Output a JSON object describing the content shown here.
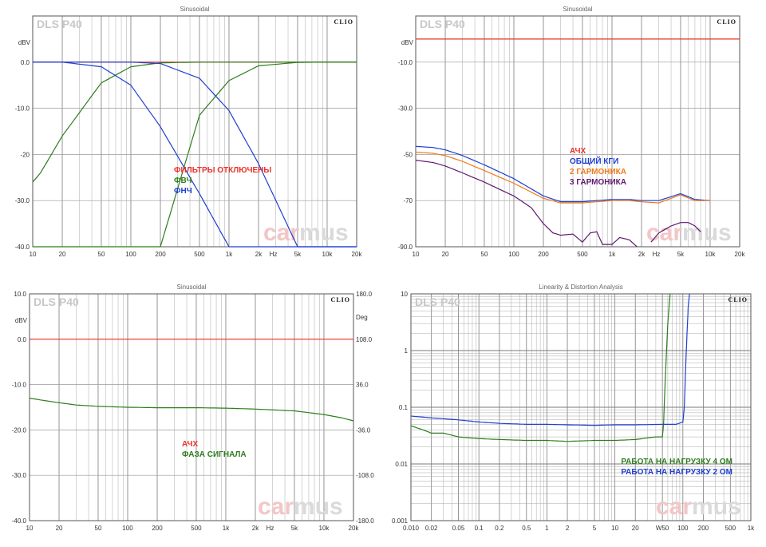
{
  "chart_data": [
    {
      "type": "line",
      "title": "Sinusoidal",
      "brand": "DLS P40",
      "logo": "CLIO",
      "x_scale": "log",
      "xlim": [
        10,
        20000
      ],
      "ylim": [
        -40,
        10
      ],
      "ylabel": "dBV",
      "x_ticks": [
        10,
        20,
        50,
        100,
        200,
        500,
        1000,
        2000,
        5000,
        10000,
        20000
      ],
      "x_tick_labels": [
        "10",
        "20",
        "50",
        "100",
        "200",
        "500",
        "1k",
        "2k",
        "5k",
        "10k",
        "20k"
      ],
      "x_unit": "Hz",
      "y_ticks": [
        0,
        -10,
        -20,
        -30,
        -40
      ],
      "y_tick_labels": [
        "0.0",
        "-10.0",
        "-20",
        "-30.0",
        "-40.0"
      ],
      "legend": [
        "ФИЛЬТРЫ ОТКЛЮЧЕНЫ",
        "ФВЧ",
        "ФНЧ"
      ],
      "watermark": [
        "car",
        "mus"
      ],
      "series": [
        {
          "name": "ФИЛЬТРЫ ОТКЛЮЧЕНЫ",
          "color": "#e8322a",
          "x": [
            10,
            20,
            50,
            100,
            200,
            500,
            1000,
            2000,
            5000,
            10000,
            20000
          ],
          "y": [
            0,
            0,
            0,
            0,
            0,
            0,
            0,
            0,
            0,
            0,
            0
          ]
        },
        {
          "name": "ФВЧ",
          "color": "#2e7d1e",
          "curve": "hp4",
          "x": [
            10,
            20,
            50,
            100,
            200,
            500,
            1000,
            2000,
            5000,
            10000,
            20000
          ],
          "y": [
            -40,
            -40,
            -40,
            -40,
            -40,
            -11.5,
            -4,
            -0.8,
            -0.05,
            0,
            0
          ]
        },
        {
          "name": "ФВЧ",
          "color": "#2e7d1e",
          "curve": "hp1",
          "x": [
            10,
            12,
            20,
            50,
            100,
            200,
            500,
            1000,
            2000,
            5000,
            10000,
            20000
          ],
          "y": [
            -26,
            -24,
            -16,
            -4.5,
            -1,
            -0.15,
            0,
            0,
            0,
            0,
            0,
            0
          ]
        },
        {
          "name": "ФНЧ",
          "color": "#1f3fd0",
          "curve": "lp1",
          "x": [
            10,
            20,
            50,
            100,
            200,
            500,
            1000,
            2000,
            5000,
            10000,
            20000
          ],
          "y": [
            0,
            0,
            -1,
            -5,
            -14,
            -28.5,
            -40,
            -40,
            -40,
            -40,
            -40
          ]
        },
        {
          "name": "ФНЧ",
          "color": "#1f3fd0",
          "curve": "lp2",
          "x": [
            10,
            20,
            50,
            100,
            200,
            500,
            1000,
            2000,
            5000,
            10000,
            20000
          ],
          "y": [
            0,
            0,
            0,
            0,
            -0.3,
            -3.5,
            -10.5,
            -22,
            -40,
            -40,
            -40
          ]
        }
      ]
    },
    {
      "type": "line",
      "title": "Sinusoidal",
      "brand": "DLS P40",
      "logo": "CLIO",
      "x_scale": "log",
      "xlim": [
        10,
        20000
      ],
      "ylim": [
        -90,
        10
      ],
      "ylabel": "dBV",
      "x_ticks": [
        10,
        20,
        50,
        100,
        200,
        500,
        1000,
        2000,
        5000,
        10000,
        20000
      ],
      "x_tick_labels": [
        "10",
        "20",
        "50",
        "100",
        "200",
        "500",
        "1k",
        "2k",
        "5k",
        "10k",
        "20k"
      ],
      "x_unit": "Hz",
      "y_ticks": [
        -10,
        -30,
        -50,
        -70,
        -90
      ],
      "y_tick_labels": [
        "-10.0",
        "-30.0",
        "-50",
        "-70",
        "-90.0"
      ],
      "legend": [
        "АЧХ",
        "ОБЩИЙ КГИ",
        "2 ГАРМОНИКА",
        "3 ГАРМОНИКА"
      ],
      "watermark": [
        "car",
        "mus"
      ],
      "series": [
        {
          "name": "АЧХ",
          "color": "#e8322a",
          "x": [
            10,
            100,
            1000,
            10000,
            20000
          ],
          "y": [
            0,
            0,
            0,
            0,
            0
          ]
        },
        {
          "name": "ОБЩИЙ КГИ",
          "color": "#1f3fd0",
          "x": [
            10,
            15,
            20,
            30,
            50,
            100,
            200,
            300,
            500,
            700,
            1000,
            1500,
            2000,
            3000,
            5000,
            7000,
            10000
          ],
          "y": [
            -46.5,
            -47,
            -48,
            -50.5,
            -54.5,
            -60.5,
            -68,
            -70.5,
            -70.5,
            -70,
            -69.5,
            -69.5,
            -70,
            -70,
            -67,
            -69.5,
            -70
          ]
        },
        {
          "name": "2 ГАРМОНИКА",
          "color": "#f07a1a",
          "x": [
            10,
            15,
            20,
            30,
            50,
            100,
            200,
            300,
            500,
            700,
            1000,
            1500,
            2000,
            3000,
            5000,
            7000,
            10000
          ],
          "y": [
            -49,
            -49.5,
            -50.5,
            -53,
            -57,
            -62.5,
            -69,
            -71,
            -71,
            -70.5,
            -70,
            -70,
            -70.5,
            -71,
            -67.5,
            -70,
            -70
          ]
        },
        {
          "name": "3 ГАРМОНИКА",
          "color": "#5e1a6e",
          "x": [
            10,
            15,
            20,
            30,
            50,
            100,
            150,
            200,
            250,
            300,
            400,
            500,
            600,
            700,
            800,
            1000,
            1200,
            1500,
            1800
          ],
          "y": [
            -52.5,
            -53.5,
            -55,
            -58,
            -62,
            -68,
            -73,
            -80,
            -84,
            -85,
            -84.5,
            -88,
            -84,
            -83.5,
            -89,
            -89,
            -86,
            -87,
            -90
          ]
        },
        {
          "name": "3 ГАРМОНИКА",
          "color": "#5e1a6e",
          "x": [
            2500,
            3000,
            4000,
            5000,
            6000,
            7000,
            8000
          ],
          "y": [
            -88,
            -84,
            -81,
            -79.5,
            -79.5,
            -81,
            -83.5
          ]
        }
      ]
    },
    {
      "type": "line",
      "title": "Sinusoidal",
      "brand": "DLS P40",
      "logo": "CLIO",
      "x_scale": "log",
      "xlim": [
        10,
        20000
      ],
      "ylim": [
        -40,
        10
      ],
      "ylabel": "dBV",
      "y2label": "Deg",
      "x_ticks": [
        10,
        20,
        50,
        100,
        200,
        500,
        1000,
        2000,
        5000,
        10000,
        20000
      ],
      "x_tick_labels": [
        "10",
        "20",
        "50",
        "100",
        "200",
        "500",
        "1k",
        "2k",
        "5k",
        "10k",
        "20k"
      ],
      "x_unit": "Hz",
      "y_ticks": [
        10,
        0,
        -10,
        -20,
        -30,
        -40
      ],
      "y_tick_labels": [
        "10.0",
        "0.0",
        "-10.0",
        "-20.0",
        "-30.0",
        "-40.0"
      ],
      "y2_ticks": [
        10,
        0,
        -10,
        -20,
        -30,
        -40
      ],
      "y2_tick_labels": [
        "180.0",
        "108.0",
        "36.0",
        "-36.0",
        "-108.0",
        "-180.0"
      ],
      "legend": [
        "АЧХ",
        "ФАЗА СИГНАЛА"
      ],
      "watermark": [
        "car",
        "mus"
      ],
      "series": [
        {
          "name": "АЧХ",
          "color": "#e8322a",
          "x": [
            10,
            100,
            1000,
            10000,
            20000
          ],
          "y": [
            0,
            0,
            0,
            0,
            0
          ]
        },
        {
          "name": "ФАЗА СИГНАЛА",
          "color": "#2e7d1e",
          "x": [
            10,
            15,
            20,
            30,
            50,
            100,
            200,
            500,
            1000,
            2000,
            5000,
            10000,
            15000,
            20000
          ],
          "y": [
            -13,
            -13.6,
            -14,
            -14.5,
            -14.8,
            -15,
            -15.1,
            -15.1,
            -15.2,
            -15.4,
            -15.8,
            -16.6,
            -17.3,
            -18
          ]
        }
      ]
    },
    {
      "type": "line",
      "title": "Linearity & Distortion Analysis",
      "brand": "DLS P40",
      "logo": "CLIO",
      "x_scale": "log",
      "y_scale": "log",
      "xlim": [
        0.01,
        1000
      ],
      "ylim": [
        0.001,
        10
      ],
      "x_ticks": [
        0.01,
        0.02,
        0.05,
        0.1,
        0.2,
        0.5,
        1,
        2,
        5,
        10,
        20,
        50,
        100,
        200,
        500,
        1000
      ],
      "x_tick_labels": [
        "0.010",
        "0.02",
        "0.05",
        "0.1",
        "0.2",
        "0.5",
        "1",
        "2",
        "5",
        "10",
        "20",
        "W50",
        "100",
        "200",
        "500",
        "1k"
      ],
      "y_ticks": [
        10,
        1,
        0.1,
        0.01,
        0.001
      ],
      "y_tick_labels": [
        "10",
        "1",
        "0.1",
        "0.01",
        "0.001"
      ],
      "legend": [
        "РАБОТА НА НАГРУЗКУ 4 ОМ",
        "РАБОТА НА НАГРУЗКУ 2 ОМ"
      ],
      "watermark": [
        "car",
        "mus"
      ],
      "series": [
        {
          "name": "РАБОТА НА НАГРУЗКУ 4 ОМ",
          "color": "#2e7d1e",
          "x": [
            0.01,
            0.015,
            0.02,
            0.03,
            0.05,
            0.1,
            0.2,
            0.5,
            1,
            2,
            5,
            10,
            20,
            40,
            50,
            52,
            55,
            60,
            65
          ],
          "y": [
            0.047,
            0.04,
            0.035,
            0.035,
            0.03,
            0.028,
            0.027,
            0.026,
            0.026,
            0.025,
            0.026,
            0.026,
            0.027,
            0.03,
            0.03,
            0.05,
            0.3,
            3,
            10
          ]
        },
        {
          "name": "РАБОТА НА НАГРУЗКУ 2 ОМ",
          "color": "#1f3fd0",
          "x": [
            0.01,
            0.02,
            0.05,
            0.1,
            0.2,
            0.5,
            1,
            2,
            5,
            10,
            20,
            50,
            80,
            100,
            105,
            110,
            115,
            120,
            125
          ],
          "y": [
            0.07,
            0.065,
            0.06,
            0.055,
            0.052,
            0.05,
            0.05,
            0.049,
            0.048,
            0.049,
            0.049,
            0.05,
            0.05,
            0.055,
            0.1,
            0.5,
            2,
            6,
            10
          ]
        }
      ]
    }
  ]
}
